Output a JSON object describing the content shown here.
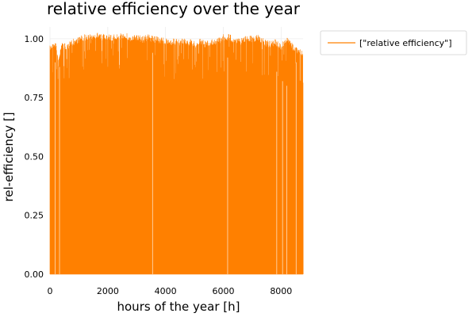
{
  "chart_data": {
    "type": "area",
    "title": "relative efficiency over the year",
    "xlabel": "hours of the year [h]",
    "ylabel": "rel-efficiency []",
    "xlim": [
      0,
      8760
    ],
    "ylim": [
      0,
      1.05
    ],
    "x_ticks": [
      0,
      2000,
      4000,
      6000,
      8000
    ],
    "x_tick_labels": [
      "0",
      "2000",
      "4000",
      "6000",
      "8000"
    ],
    "y_ticks": [
      0,
      0.25,
      0.5,
      0.75,
      1.0
    ],
    "y_tick_labels": [
      "0.00",
      "0.25",
      "0.50",
      "0.75",
      "1.00"
    ],
    "grid": true,
    "legend_position": "outside-top-right",
    "color": "#FF8000",
    "series": [
      {
        "name": "[\"relative efficiency\"]",
        "x": [
          0,
          100,
          200,
          300,
          400,
          600,
          800,
          1000,
          1200,
          1400,
          1600,
          1800,
          2000,
          2200,
          2400,
          2600,
          2800,
          3000,
          3200,
          3400,
          3600,
          3800,
          4000,
          4200,
          4400,
          4600,
          4800,
          5000,
          5200,
          5400,
          5600,
          5800,
          6000,
          6200,
          6400,
          6600,
          6800,
          7000,
          7200,
          7400,
          7600,
          7800,
          8000,
          8200,
          8400,
          8600,
          8760
        ],
        "peak": [
          0.97,
          0.99,
          0.99,
          0.91,
          0.99,
          0.98,
          1.0,
          1.01,
          1.02,
          1.02,
          1.03,
          1.02,
          1.02,
          1.02,
          1.02,
          1.03,
          1.01,
          1.02,
          1.01,
          1.02,
          1.01,
          1.01,
          1.0,
          1.0,
          1.0,
          1.0,
          1.0,
          0.99,
          1.0,
          0.99,
          1.0,
          1.0,
          1.02,
          1.02,
          1.01,
          1.0,
          1.02,
          1.01,
          1.02,
          1.0,
          0.99,
          1.0,
          0.98,
          1.01,
          0.98,
          0.96,
          0.95
        ]
      }
    ]
  }
}
